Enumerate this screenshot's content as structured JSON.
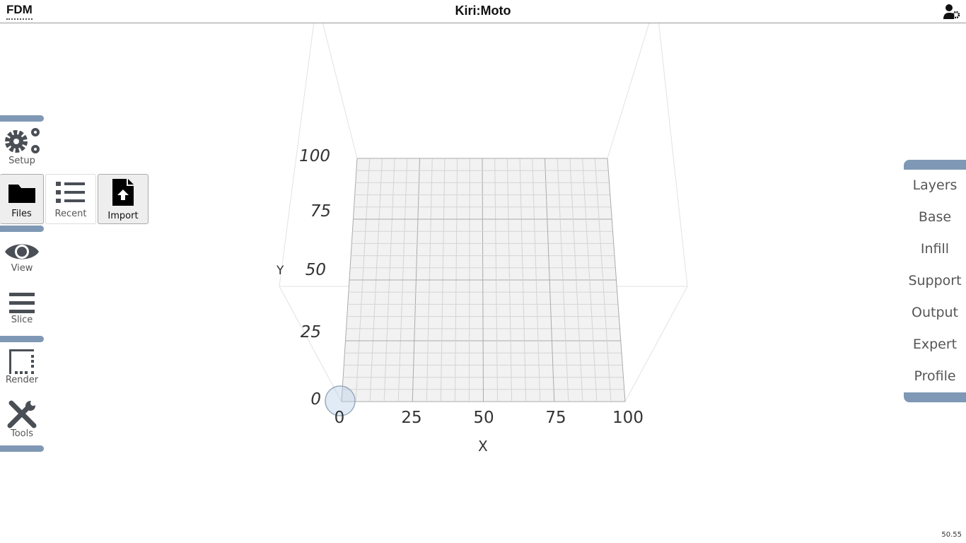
{
  "header": {
    "mode": "FDM",
    "title": "Kiri:Moto",
    "user_icon": "user-gear-icon"
  },
  "left_menu": {
    "items": [
      {
        "label": "Setup",
        "icon": "gears-icon"
      },
      {
        "label": "Files",
        "icon": "folder-icon"
      },
      {
        "label": "View",
        "icon": "eye-icon"
      },
      {
        "label": "Slice",
        "icon": "bars-icon"
      },
      {
        "label": "Render",
        "icon": "border-style-icon"
      },
      {
        "label": "Tools",
        "icon": "tools-icon"
      }
    ],
    "files_sub": [
      {
        "label": "Recent",
        "icon": "list-icon"
      },
      {
        "label": "Import",
        "icon": "file-import-icon"
      }
    ]
  },
  "right_menu": {
    "items": [
      "Layers",
      "Base",
      "Infill",
      "Support",
      "Output",
      "Expert",
      "Profile"
    ]
  },
  "viewport": {
    "x_axis": "X",
    "y_axis": "Y",
    "x_ticks": [
      "0",
      "25",
      "50",
      "75",
      "100"
    ],
    "y_ticks": [
      "0",
      "25",
      "50",
      "75",
      "100"
    ]
  },
  "status": {
    "fps": "50.55"
  },
  "colors": {
    "accent": "#7f98b5",
    "icon": "#4a4f56"
  }
}
